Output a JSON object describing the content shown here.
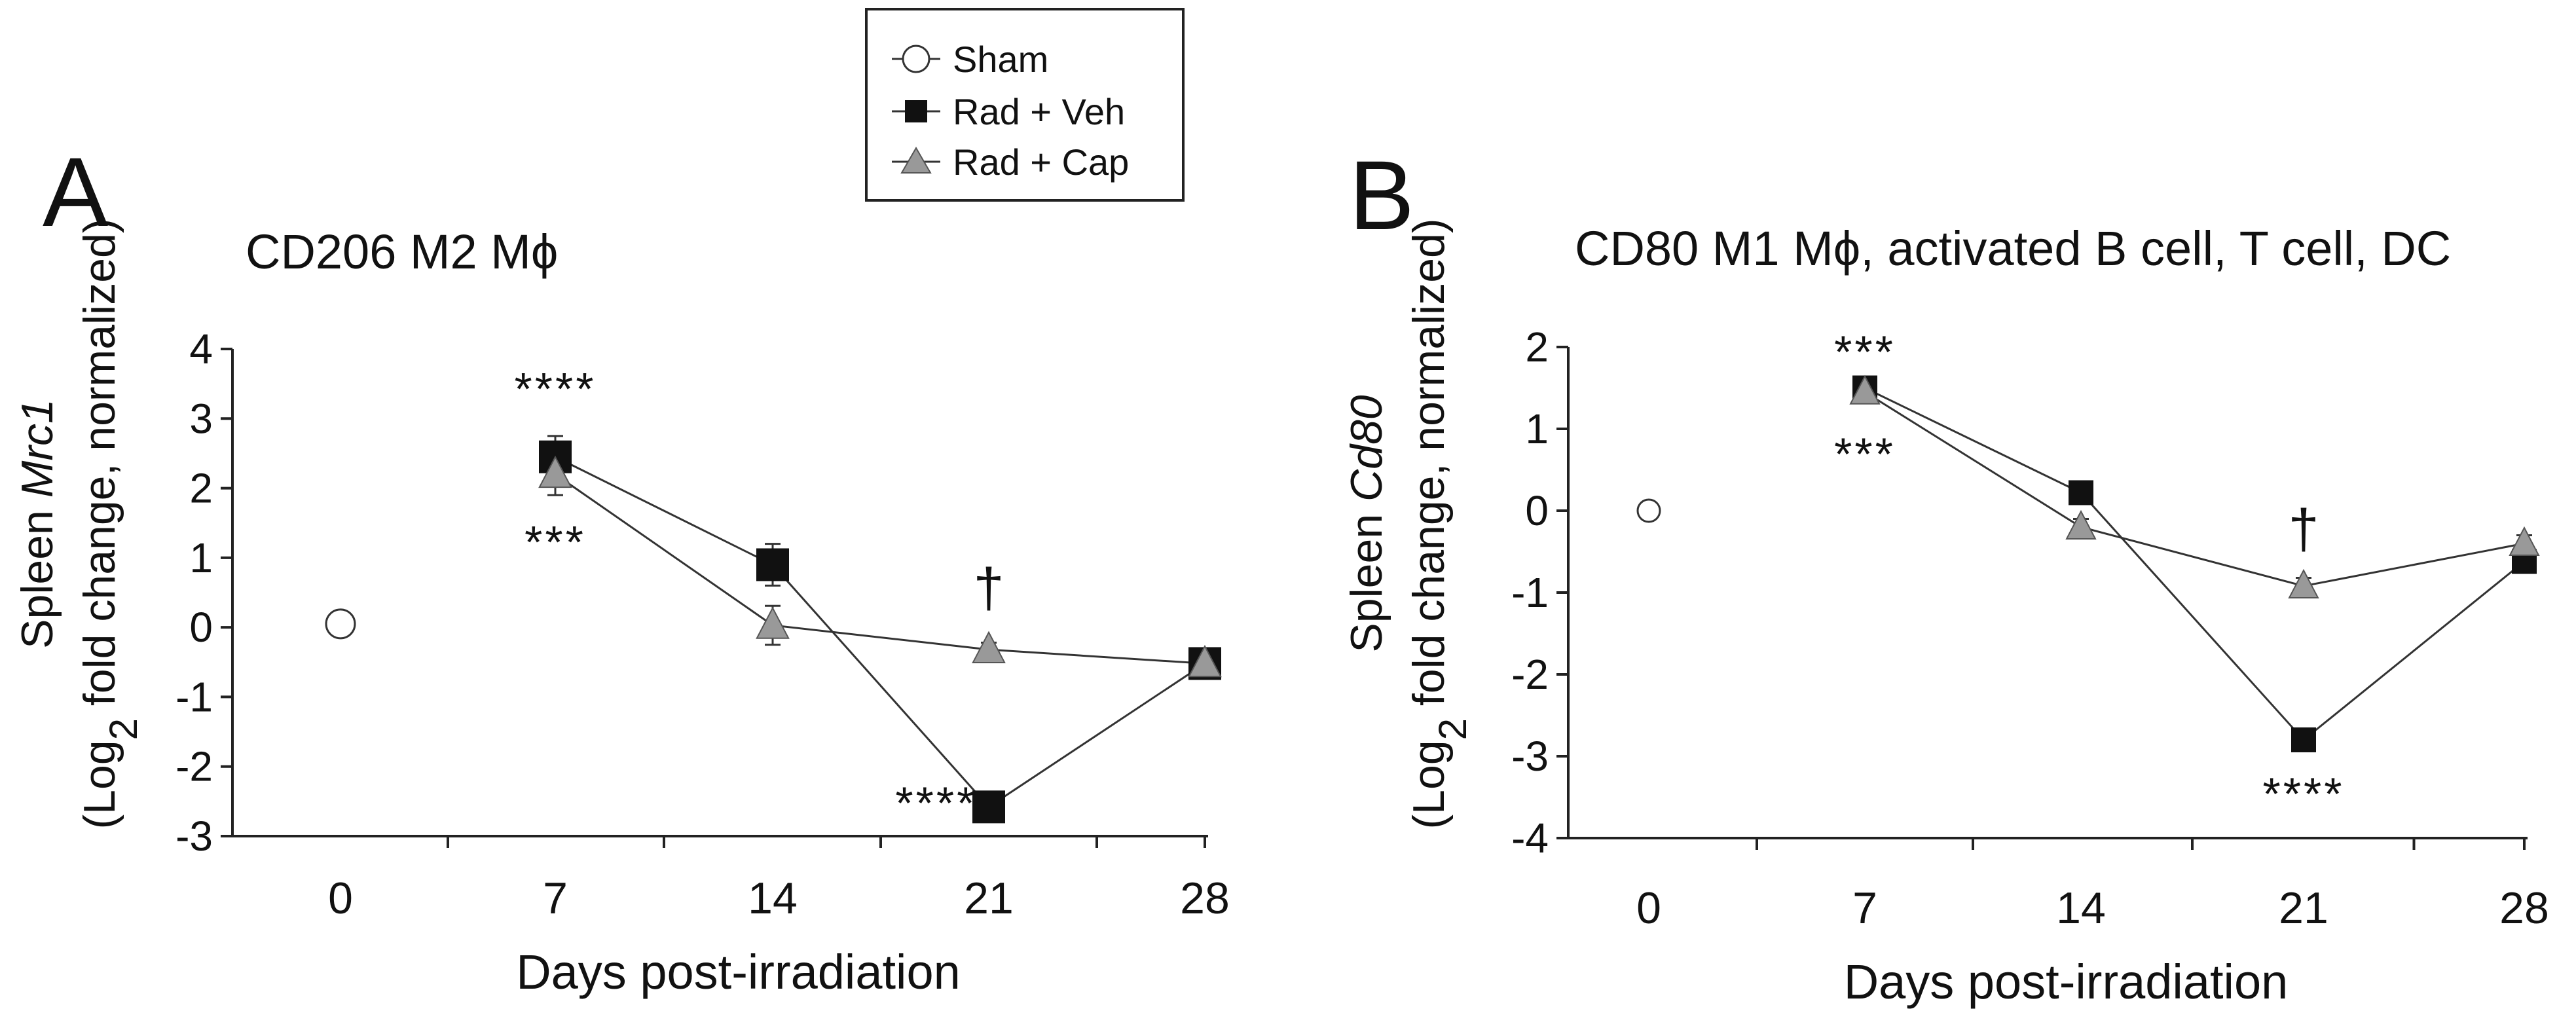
{
  "legend": {
    "entries": [
      {
        "label": "Sham",
        "marker": "circle-open"
      },
      {
        "label": "Rad + Veh",
        "marker": "square-filled"
      },
      {
        "label": "Rad + Cap",
        "marker": "triangle-gray"
      }
    ]
  },
  "colors": {
    "veh": "#111111",
    "cap": "#999999",
    "line": "#333333",
    "sham_fill": "#ffffff"
  },
  "chart_data": [
    {
      "type": "line",
      "panel_label": "A",
      "title": "CD206 M2 Mϕ",
      "xlabel": "Days post-irradiation",
      "ylabel_line1_prefix": "Spleen ",
      "ylabel_line1_italic": "Mrc1",
      "ylabel_line2_prefix": "(Log",
      "ylabel_line2_sub": "2",
      "ylabel_line2_suffix": " fold change, normalized)",
      "x": [
        0,
        7,
        14,
        21,
        28
      ],
      "xticklabels": [
        "0",
        "7",
        "14",
        "21",
        "28"
      ],
      "ylim": [
        -3,
        4
      ],
      "yticks": [
        -3,
        -2,
        -1,
        0,
        1,
        2,
        3,
        4
      ],
      "yticklabels": [
        "-3",
        "-2",
        "-1",
        "0",
        "1",
        "2",
        "3",
        "4"
      ],
      "series": [
        {
          "name": "Sham",
          "x": [
            0
          ],
          "values": [
            0.05
          ],
          "err": [
            0
          ]
        },
        {
          "name": "Rad + Veh",
          "x": [
            7,
            14,
            21,
            28
          ],
          "values": [
            2.45,
            0.9,
            -2.58,
            -0.52
          ],
          "err": [
            0.3,
            0.3,
            0.1,
            0.1
          ]
        },
        {
          "name": "Rad + Cap",
          "x": [
            7,
            14,
            21,
            28
          ],
          "values": [
            2.2,
            0.03,
            -0.32,
            -0.52
          ],
          "err": [
            0.3,
            0.28,
            0.1,
            0.1
          ]
        }
      ],
      "annotations": [
        {
          "text": "****",
          "x": 7,
          "y": 3.2
        },
        {
          "text": "***",
          "x": 7,
          "y": 1.0
        },
        {
          "text": "†",
          "x": 21,
          "y": 0.3
        },
        {
          "text": "****",
          "x": 19.3,
          "y": -2.75
        }
      ]
    },
    {
      "type": "line",
      "panel_label": "B",
      "title": "CD80 M1 Mϕ, activated B cell, T cell, DC",
      "xlabel": "Days post-irradiation",
      "ylabel_line1_prefix": "Spleen ",
      "ylabel_line1_italic": "Cd80",
      "ylabel_line2_prefix": "(Log",
      "ylabel_line2_sub": "2",
      "ylabel_line2_suffix": " fold change, normalized)",
      "x": [
        0,
        7,
        14,
        21,
        28
      ],
      "xticklabels": [
        "0",
        "7",
        "14",
        "21",
        "28"
      ],
      "ylim": [
        -4,
        2
      ],
      "yticks": [
        -4,
        -3,
        -2,
        -1,
        0,
        1,
        2
      ],
      "yticklabels": [
        "-4",
        "-3",
        "-2",
        "-1",
        "0",
        "1",
        "2"
      ],
      "series": [
        {
          "name": "Sham",
          "x": [
            0
          ],
          "values": [
            0
          ],
          "err": [
            0
          ]
        },
        {
          "name": "Rad + Veh",
          "x": [
            7,
            14,
            21,
            28
          ],
          "values": [
            1.5,
            0.22,
            -2.8,
            -0.62
          ],
          "err": [
            0.1,
            0.1,
            0.1,
            0.1
          ]
        },
        {
          "name": "Rad + Cap",
          "x": [
            7,
            14,
            21,
            28
          ],
          "values": [
            1.45,
            -0.2,
            -0.92,
            -0.4
          ],
          "err": [
            0.1,
            0.1,
            0.1,
            0.1
          ]
        }
      ],
      "annotations": [
        {
          "text": "***",
          "x": 7,
          "y": 1.75
        },
        {
          "text": "***",
          "x": 7,
          "y": 0.5
        },
        {
          "text": "†",
          "x": 21,
          "y": -0.45
        },
        {
          "text": "****",
          "x": 21,
          "y": -3.65
        }
      ]
    }
  ]
}
